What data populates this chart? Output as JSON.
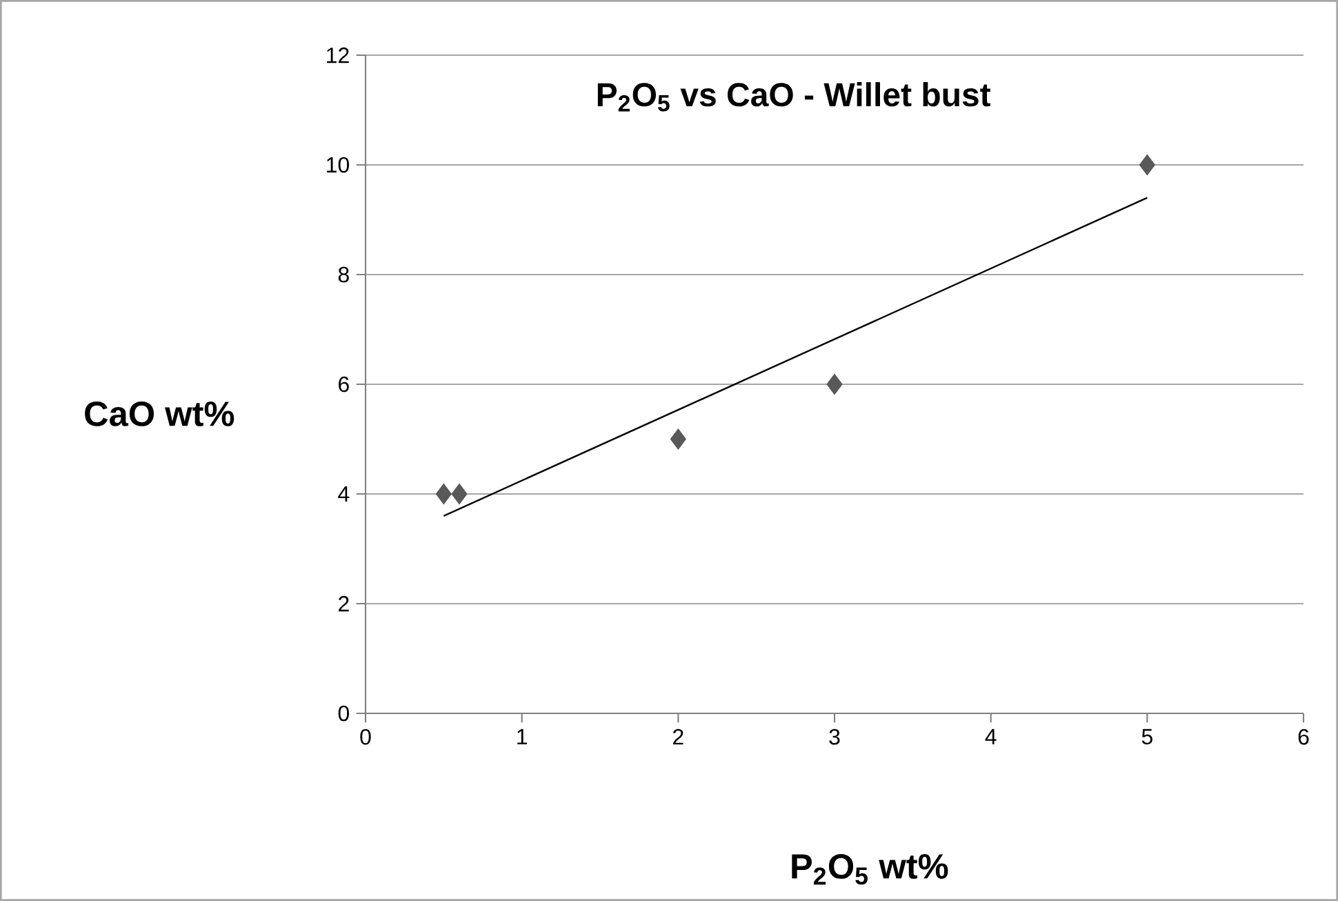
{
  "chart_data": {
    "type": "scatter",
    "title": "P$_{2}$O$_{5}$ vs CaO - Willet bust",
    "xlabel": "P$_{2}$O$_{5}$ wt%",
    "ylabel": "CaO wt%",
    "xlim": [
      0,
      6
    ],
    "xticks": [
      0,
      1,
      2,
      3,
      4,
      5,
      6
    ],
    "ylim": [
      0,
      12
    ],
    "yticks": [
      0,
      2,
      4,
      6,
      8,
      10,
      12
    ],
    "grid": "y",
    "marker": "diamond",
    "series": [
      {
        "color": "#595959",
        "x": [
          0.5,
          0.6,
          2,
          3,
          5
        ],
        "values": [
          4,
          4,
          5,
          6,
          10
        ]
      },
      {
        "type": "line",
        "color": "#000000",
        "marker": "none",
        "line_style": "solid",
        "x": [
          0.5,
          5
        ],
        "values": [
          3.6,
          9.4
        ]
      }
    ]
  }
}
